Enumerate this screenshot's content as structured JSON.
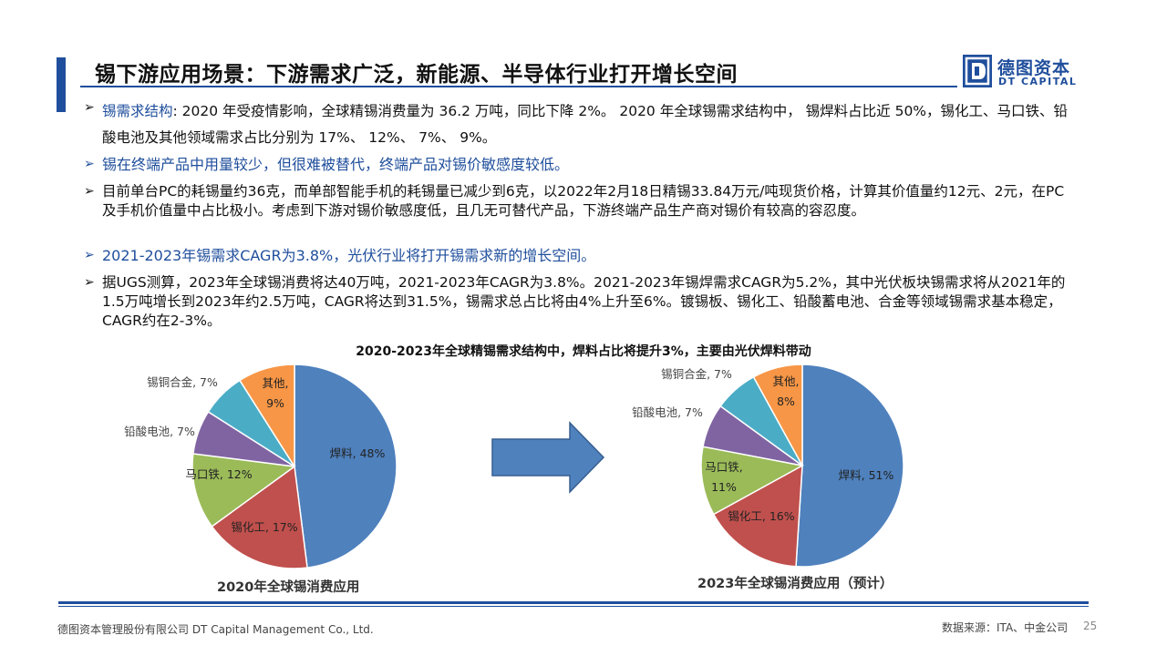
{
  "header": {
    "title": "锡下游应用场景：下游需求广泛，新能源、半导体行业打开增长空间",
    "logo_cn": "德图资本",
    "logo_en": "DT CAPITAL"
  },
  "body": {
    "p1_label": "锡需求结构",
    "p1_text": ": 2020 年受疫情影响，全球精锡消费量为 36.2 万吨，同比下降 2%。 2020 年全球锡需求结构中， 锡焊料占比近 50%，锡化工、马口铁、铅酸电池及其他领域需求占比分别为 17%、 12%、 7%、 9%。",
    "p2_text": "锡在终端产品中用量较少，但很难被替代，终端产品对锡价敏感度较低。",
    "p3_text": "目前单台PC的耗锡量约36克，而单部智能手机的耗锡量已减少到6克，以2022年2月18日精锡33.84万元/吨现货价格，计算其价值量约12元、2元，在PC及手机价值量中占比极小。考虑到下游对锡价敏感度低，且几无可替代产品，下游终端产品生产商对锡价有较高的容忍度。",
    "p4_text": "2021-2023年锡需求CAGR为3.8%，光伏行业将打开锡需求新的增长空间。",
    "p5_text": "据UGS测算，2023年全球锡消费将达40万吨，2021-2023年CAGR为3.8%。2021-2023年锡焊需求CAGR为5.2%，其中光伏板块锡需求将从2021年的1.5万吨增长到2023年约2.5万吨，CAGR将达到31.5%，锡需求总占比将由4%上升至6%。镀锡板、锡化工、铅酸蓄电池、合金等领域锡需求基本稳定，CAGR约在2-3%。"
  },
  "chart_data": [
    {
      "type": "pie",
      "title": "2020-2023年全球精锡需求结构中，焊料占比将提升3%，主要由光伏焊料带动",
      "caption": "2020年全球锡消费应用",
      "categories": [
        "焊料",
        "锡化工",
        "马口铁",
        "铅酸电池",
        "锡铜合金",
        "其他"
      ],
      "values": [
        48,
        17,
        12,
        7,
        7,
        9
      ],
      "labels": [
        "焊料, 48%",
        "锡化工, 17%",
        "马口铁, 12%",
        "铅酸电池, 7%",
        "锡铜合金, 7%",
        "其他,\n9%"
      ],
      "colors": [
        "#4f81bd",
        "#c0504d",
        "#9bbb59",
        "#8064a2",
        "#4bacc6",
        "#f79646"
      ]
    },
    {
      "type": "pie",
      "caption": "2023年全球锡消费应用（预计）",
      "categories": [
        "焊料",
        "锡化工",
        "马口铁",
        "铅酸电池",
        "锡铜合金",
        "其他"
      ],
      "values": [
        51,
        16,
        11,
        7,
        7,
        8
      ],
      "labels": [
        "焊料, 51%",
        "锡化工, 16%",
        "马口铁,\n11%",
        "铅酸电池, 7%",
        "锡铜合金, 7%",
        "其他,\n8%"
      ],
      "colors": [
        "#4f81bd",
        "#c0504d",
        "#9bbb59",
        "#8064a2",
        "#4bacc6",
        "#f79646"
      ]
    }
  ],
  "footer": {
    "company": "德图资本管理股份有限公司  DT Capital Management  Co., Ltd.",
    "source": "数据来源：ITA、中金公司",
    "page": "25"
  }
}
